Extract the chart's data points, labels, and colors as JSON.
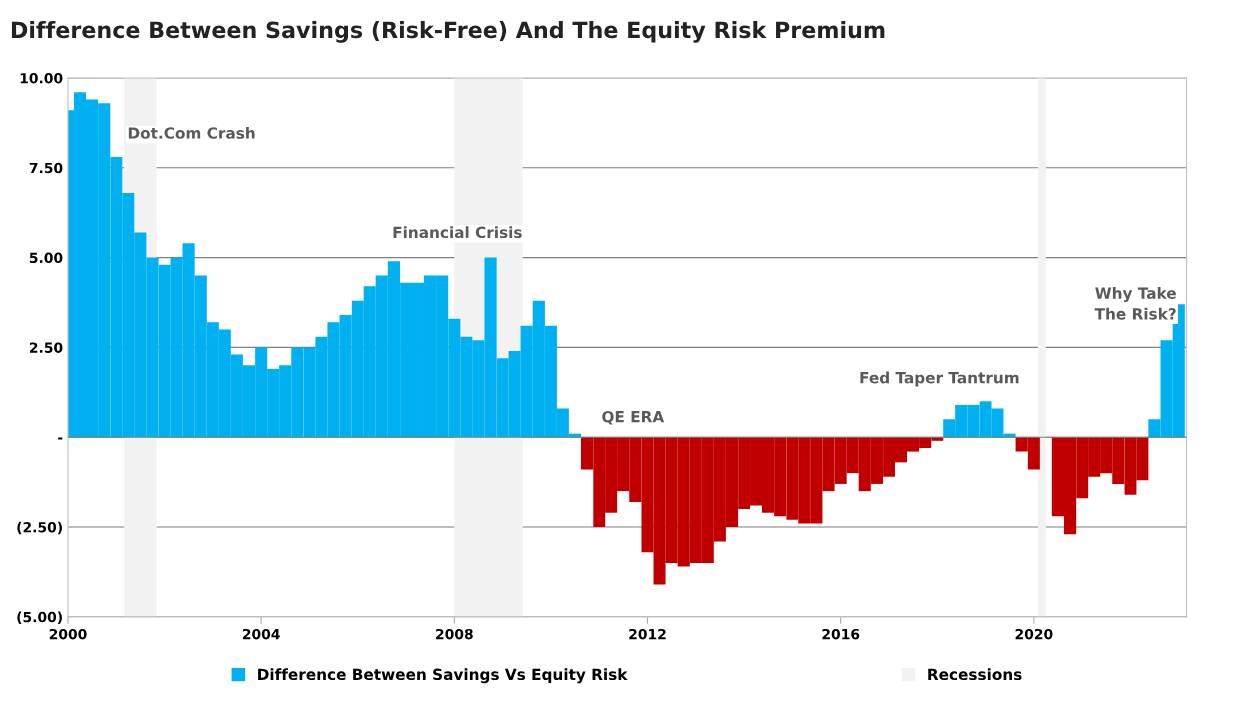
{
  "chart_data": {
    "type": "bar",
    "title": "Difference Between Savings (Risk-Free) And The Equity Risk Premium",
    "x": [
      "2000-01",
      "2000-04",
      "2000-07",
      "2000-10",
      "2001-01",
      "2001-04",
      "2001-07",
      "2001-10",
      "2002-01",
      "2002-04",
      "2002-07",
      "2002-10",
      "2003-01",
      "2003-04",
      "2003-07",
      "2003-10",
      "2004-01",
      "2004-04",
      "2004-07",
      "2004-10",
      "2005-01",
      "2005-04",
      "2005-07",
      "2005-10",
      "2006-01",
      "2006-04",
      "2006-07",
      "2006-10",
      "2007-01",
      "2007-04",
      "2007-07",
      "2007-10",
      "2008-01",
      "2008-04",
      "2008-07",
      "2008-10",
      "2009-01",
      "2009-04",
      "2009-07",
      "2009-10",
      "2010-01",
      "2010-04",
      "2010-07",
      "2010-10",
      "2011-01",
      "2011-04",
      "2011-07",
      "2011-10",
      "2012-01",
      "2012-04",
      "2012-07",
      "2012-10",
      "2013-01",
      "2013-04",
      "2013-07",
      "2013-10",
      "2014-01",
      "2014-04",
      "2014-07",
      "2014-10",
      "2015-01",
      "2015-04",
      "2015-07",
      "2015-10",
      "2016-01",
      "2016-04",
      "2016-07",
      "2016-10",
      "2017-01",
      "2017-04",
      "2017-07",
      "2017-10",
      "2018-01",
      "2018-04",
      "2018-07",
      "2018-10",
      "2019-01",
      "2019-04",
      "2019-07",
      "2019-10",
      "2020-01",
      "2020-04",
      "2020-07",
      "2020-10",
      "2021-01",
      "2021-04",
      "2021-07",
      "2021-10",
      "2022-01",
      "2022-04",
      "2022-07",
      "2022-10",
      "2023-01"
    ],
    "series": [
      {
        "name": "Difference Between Savings Vs Equity Risk",
        "color": "#00b0f0",
        "values": [
          9.1,
          9.6,
          9.4,
          9.3,
          7.8,
          6.8,
          5.7,
          5.0,
          4.8,
          5.0,
          5.4,
          4.5,
          3.2,
          3.0,
          2.3,
          2.0,
          2.5,
          1.9,
          2.0,
          2.5,
          2.5,
          2.8,
          3.2,
          3.4,
          3.8,
          4.2,
          4.5,
          4.9,
          4.3,
          4.3,
          4.5,
          4.5,
          3.3,
          2.8,
          2.7,
          5.0,
          2.2,
          2.4,
          3.1,
          3.8,
          3.1,
          0.8,
          0.1,
          -0.9,
          -2.5,
          -2.1,
          -1.5,
          -1.8,
          -3.2,
          -4.1,
          -3.5,
          -3.6,
          -3.5,
          -3.5,
          -2.9,
          -2.5,
          -2.0,
          -1.9,
          -2.1,
          -2.2,
          -2.3,
          -2.4,
          -2.4,
          -1.5,
          -1.3,
          -1.0,
          -1.5,
          -1.3,
          -1.1,
          -0.7,
          -0.4,
          -0.3,
          -0.1,
          0.5,
          0.9,
          0.9,
          1.0,
          0.8,
          0.1,
          -0.4,
          -0.9,
          0,
          -2.2,
          -2.7,
          -1.7,
          -1.1,
          -1.0,
          -1.3,
          -1.6,
          -1.2,
          0.5,
          2.7,
          3.7
        ],
        "colors": [
          "#00b0f0",
          "#00b0f0",
          "#00b0f0",
          "#00b0f0",
          "#00b0f0",
          "#00b0f0",
          "#00b0f0",
          "#00b0f0",
          "#00b0f0",
          "#00b0f0",
          "#00b0f0",
          "#00b0f0",
          "#00b0f0",
          "#00b0f0",
          "#00b0f0",
          "#00b0f0",
          "#00b0f0",
          "#00b0f0",
          "#00b0f0",
          "#00b0f0",
          "#00b0f0",
          "#00b0f0",
          "#00b0f0",
          "#00b0f0",
          "#00b0f0",
          "#00b0f0",
          "#00b0f0",
          "#00b0f0",
          "#00b0f0",
          "#00b0f0",
          "#00b0f0",
          "#00b0f0",
          "#00b0f0",
          "#00b0f0",
          "#00b0f0",
          "#00b0f0",
          "#00b0f0",
          "#00b0f0",
          "#00b0f0",
          "#00b0f0",
          "#00b0f0",
          "#00b0f0",
          "#00b0f0",
          "#c00000",
          "#c00000",
          "#c00000",
          "#c00000",
          "#c00000",
          "#c00000",
          "#c00000",
          "#c00000",
          "#c00000",
          "#c00000",
          "#c00000",
          "#c00000",
          "#c00000",
          "#c00000",
          "#c00000",
          "#c00000",
          "#c00000",
          "#c00000",
          "#c00000",
          "#c00000",
          "#c00000",
          "#c00000",
          "#c00000",
          "#c00000",
          "#c00000",
          "#c00000",
          "#c00000",
          "#c00000",
          "#c00000",
          "#c00000",
          "#00b0f0",
          "#00b0f0",
          "#00b0f0",
          "#00b0f0",
          "#00b0f0",
          "#00b0f0",
          "#c00000",
          "#c00000",
          "#c00000",
          "#c00000",
          "#c00000",
          "#c00000",
          "#c00000",
          "#c00000",
          "#c00000",
          "#c00000",
          "#c00000",
          "#00b0f0",
          "#00b0f0",
          "#00b0f0"
        ]
      }
    ],
    "bands": [
      {
        "axis": "x",
        "from": "2001-03",
        "to": "2001-11",
        "label": "Recessions",
        "color": "#f2f2f2"
      },
      {
        "axis": "x",
        "from": "2008-01",
        "to": "2009-06",
        "color": "#f2f2f2"
      },
      {
        "axis": "x",
        "from": "2020-02",
        "to": "2020-04",
        "color": "#f2f2f2"
      }
    ],
    "annotations": [
      "Dot.Com Crash",
      "Financial Crisis",
      "QE ERA",
      "Fed Taper Tantrum",
      "Why Take\nThe Risk?"
    ],
    "xlim": [
      "2000-01",
      "2023-03"
    ],
    "xticks": [
      "2000",
      "2004",
      "2008",
      "2012",
      "2016",
      "2020"
    ],
    "ylim": [
      -5,
      10
    ],
    "yticks": [
      {
        "value": -5,
        "label": "(5.00)"
      },
      {
        "value": -2.5,
        "label": "(2.50)"
      },
      {
        "value": 0,
        "label": "-"
      },
      {
        "value": 2.5,
        "label": "2.50"
      },
      {
        "value": 5,
        "label": "5.00"
      },
      {
        "value": 7.5,
        "label": "7.50"
      },
      {
        "value": 10,
        "label": "10.00"
      }
    ],
    "grid": "y",
    "legend": "bottom"
  }
}
